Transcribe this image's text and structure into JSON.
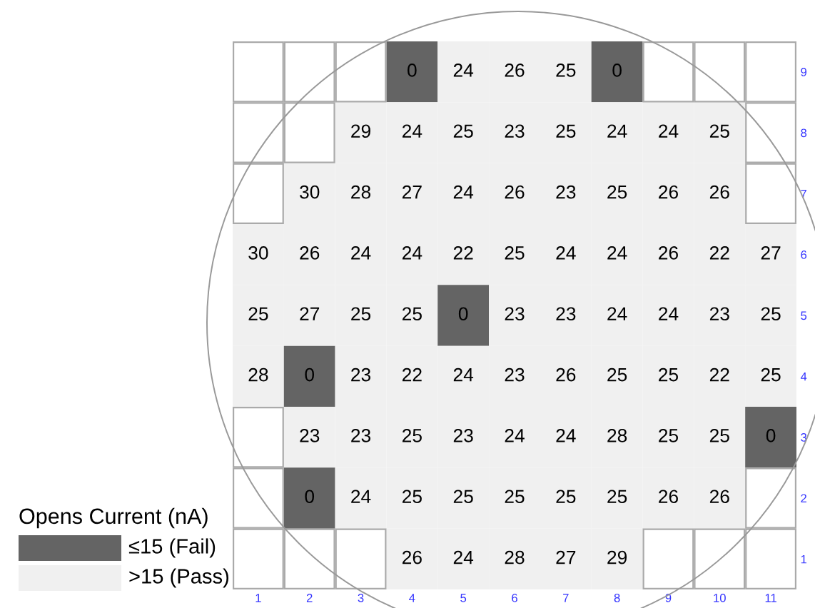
{
  "chart_data": {
    "type": "heatmap",
    "categories": [
      "1",
      "2",
      "3",
      "4",
      "5",
      "6",
      "7",
      "8",
      "9",
      "10",
      "11"
    ],
    "y_categories": [
      "9",
      "8",
      "7",
      "6",
      "5",
      "4",
      "3",
      "2",
      "1"
    ],
    "cells": [
      [
        null,
        null,
        null,
        0,
        24,
        26,
        25,
        0,
        null,
        null,
        null
      ],
      [
        null,
        null,
        29,
        24,
        25,
        23,
        25,
        24,
        24,
        25,
        null
      ],
      [
        null,
        30,
        28,
        27,
        24,
        26,
        23,
        25,
        26,
        26,
        null
      ],
      [
        30,
        26,
        24,
        24,
        22,
        25,
        24,
        24,
        26,
        22,
        27
      ],
      [
        25,
        27,
        25,
        25,
        0,
        23,
        23,
        24,
        24,
        23,
        25
      ],
      [
        28,
        0,
        23,
        22,
        24,
        23,
        26,
        25,
        25,
        22,
        25
      ],
      [
        null,
        23,
        23,
        25,
        23,
        24,
        24,
        28,
        25,
        25,
        0
      ],
      [
        null,
        0,
        24,
        25,
        25,
        25,
        25,
        25,
        26,
        26,
        null
      ],
      [
        null,
        null,
        null,
        26,
        24,
        28,
        27,
        29,
        null,
        null,
        null
      ]
    ],
    "colors": [
      [
        null,
        null,
        null,
        "#646464",
        "#f0f0f0",
        "#f0f0f0",
        "#f0f0f0",
        "#646464",
        null,
        null,
        null
      ],
      [
        null,
        null,
        "#f0f0f0",
        "#f0f0f0",
        "#f0f0f0",
        "#f0f0f0",
        "#f0f0f0",
        "#f0f0f0",
        "#f0f0f0",
        "#f0f0f0",
        null
      ],
      [
        null,
        "#f0f0f0",
        "#f0f0f0",
        "#f0f0f0",
        "#f0f0f0",
        "#f0f0f0",
        "#f0f0f0",
        "#f0f0f0",
        "#f0f0f0",
        "#f0f0f0",
        null
      ],
      [
        "#f0f0f0",
        "#f0f0f0",
        "#f0f0f0",
        "#f0f0f0",
        "#f0f0f0",
        "#f0f0f0",
        "#f0f0f0",
        "#f0f0f0",
        "#f0f0f0",
        "#f0f0f0",
        "#f0f0f0"
      ],
      [
        "#f0f0f0",
        "#f0f0f0",
        "#f0f0f0",
        "#f0f0f0",
        "#646464",
        "#f0f0f0",
        "#f0f0f0",
        "#f0f0f0",
        "#f0f0f0",
        "#f0f0f0",
        "#f0f0f0"
      ],
      [
        "#f0f0f0",
        "#646464",
        "#f0f0f0",
        "#f0f0f0",
        "#f0f0f0",
        "#f0f0f0",
        "#f0f0f0",
        "#f0f0f0",
        "#f0f0f0",
        "#f0f0f0",
        "#f0f0f0"
      ],
      [
        null,
        "#f0f0f0",
        "#f0f0f0",
        "#f0f0f0",
        "#f0f0f0",
        "#f0f0f0",
        "#f0f0f0",
        "#f0f0f0",
        "#f0f0f0",
        "#f0f0f0",
        "#646464"
      ],
      [
        null,
        "#646464",
        "#f0f0f0",
        "#f0f0f0",
        "#f0f0f0",
        "#f0f0f0",
        "#f0f0f0",
        "#f0f0f0",
        "#f0f0f0",
        "#f0f0f0",
        null
      ],
      [
        null,
        null,
        null,
        "#f0f0f0",
        "#f0f0f0",
        "#f0f0f0",
        "#f0f0f0",
        "#f0f0f0",
        null,
        null,
        null
      ]
    ],
    "annotations": [
      "≤15 (Fail)",
      ">15 (Pass)"
    ],
    "legend_title": "Opens Current (nA)",
    "data_labels": true
  }
}
